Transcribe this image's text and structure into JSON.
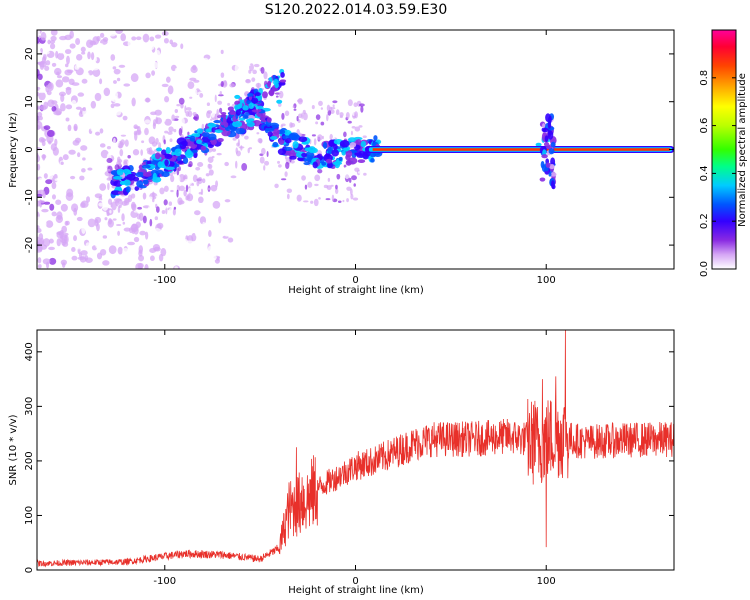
{
  "figure": {
    "title": "S120.2022.014.03.59.E30"
  },
  "chart_data": [
    {
      "type": "heatmap",
      "title": "S120.2022.014.03.59.E30",
      "xlabel": "Height of straight line (km)",
      "ylabel": "Frequency (Hz)",
      "xlim": [
        -167,
        167
      ],
      "ylim": [
        -25,
        25
      ],
      "xticks": [
        -100,
        0,
        100
      ],
      "yticks": [
        -20,
        -10,
        0,
        10,
        20
      ],
      "colorbar": {
        "label": "Normalized spectral amplitude",
        "range": [
          0,
          1
        ],
        "ticks": [
          0.0,
          0.2,
          0.4,
          0.6,
          0.8
        ],
        "colormap": [
          "#ffffff",
          "#d6a7f5",
          "#8a2be2",
          "#3300ff",
          "#0055ff",
          "#00ccff",
          "#00ff88",
          "#33ff00",
          "#bbff00",
          "#ffff00",
          "#ffaa00",
          "#ff4400",
          "#ff0033",
          "#ff0099"
        ]
      },
      "ridge": {
        "description_points_x": [
          -125,
          -115,
          -100,
          -90,
          -80,
          -70,
          -60,
          -50,
          -40,
          -30,
          -20,
          -10,
          0,
          10,
          50,
          90,
          100,
          105,
          167
        ],
        "description_points_y": [
          -7,
          -6,
          -3,
          0,
          2,
          4,
          6,
          8,
          2,
          0,
          -1,
          -1,
          0,
          0,
          0,
          0,
          0,
          0,
          0
        ]
      },
      "grid": false
    },
    {
      "type": "line",
      "xlabel": "Height of straight line (km)",
      "ylabel": "SNR (10 * v/v)",
      "xlim": [
        -167,
        167
      ],
      "ylim": [
        0,
        440
      ],
      "xticks": [
        -100,
        0,
        100
      ],
      "yticks": [
        0,
        100,
        200,
        300,
        400
      ],
      "grid": false,
      "color": "#e8302a",
      "envelope_x": [
        -167,
        -120,
        -90,
        -70,
        -50,
        -40,
        -35,
        -30,
        -25,
        -20,
        -10,
        0,
        10,
        20,
        30,
        40,
        50,
        60,
        70,
        80,
        90,
        95,
        100,
        105,
        110,
        112,
        120,
        140,
        167
      ],
      "envelope_y": [
        12,
        15,
        30,
        28,
        20,
        40,
        110,
        120,
        130,
        150,
        170,
        190,
        200,
        215,
        230,
        240,
        240,
        240,
        242,
        245,
        240,
        230,
        240,
        245,
        245,
        240,
        235,
        238,
        240
      ],
      "spikes": [
        {
          "x": -31,
          "y": 225
        },
        {
          "x": -28,
          "y": 170
        },
        {
          "x": 94,
          "y": 310
        },
        {
          "x": 98,
          "y": 350
        },
        {
          "x": 100,
          "y": 42
        },
        {
          "x": 105,
          "y": 355
        },
        {
          "x": 110,
          "y": 440
        }
      ]
    }
  ]
}
